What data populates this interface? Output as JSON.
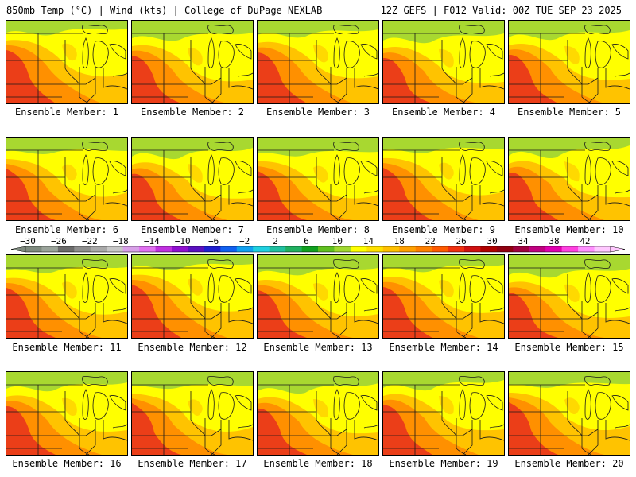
{
  "header": {
    "left": "850mb Temp (°C) | Wind (kts) | College of DuPage NEXLAB",
    "right": "12Z GEFS | F012 Valid: 00Z TUE SEP 23 2025"
  },
  "members": [
    "Ensemble Member: 1",
    "Ensemble Member: 2",
    "Ensemble Member: 3",
    "Ensemble Member: 4",
    "Ensemble Member: 5",
    "Ensemble Member: 6",
    "Ensemble Member: 7",
    "Ensemble Member: 8",
    "Ensemble Member: 9",
    "Ensemble Member: 10",
    "Ensemble Member: 11",
    "Ensemble Member: 12",
    "Ensemble Member: 13",
    "Ensemble Member: 14",
    "Ensemble Member: 15",
    "Ensemble Member: 16",
    "Ensemble Member: 17",
    "Ensemble Member: 18",
    "Ensemble Member: 19",
    "Ensemble Member: 20"
  ],
  "colorbar": {
    "labels": [
      "−30",
      "−26",
      "−22",
      "−18",
      "−14",
      "−10",
      "−6",
      "−2",
      "2",
      "6",
      "10",
      "14",
      "18",
      "22",
      "26",
      "30",
      "34",
      "38",
      "42"
    ],
    "colors": [
      "#7f8a7f",
      "#9aa39a",
      "#6b6b6b",
      "#8e8e8e",
      "#a9a9a9",
      "#c8c8c8",
      "#d8a0e8",
      "#e070f0",
      "#c030e0",
      "#9010d0",
      "#5a10c0",
      "#2020d0",
      "#1060f0",
      "#10a0f0",
      "#20d0e0",
      "#20c0a0",
      "#20b060",
      "#10a020",
      "#60c020",
      "#a0d830",
      "#ffff00",
      "#ffe000",
      "#ffc000",
      "#ffa000",
      "#ff8000",
      "#ff5a00",
      "#f03010",
      "#d01010",
      "#b00000",
      "#900010",
      "#a00040",
      "#c00080",
      "#e000b0",
      "#ff40e0",
      "#ff90ff",
      "#ffc8ff"
    ]
  },
  "colors": {
    "warm_red": "#e8301c",
    "orange": "#ff9000",
    "amber": "#ffc000",
    "yellow": "#ffff00",
    "green": "#a8d830",
    "map_lines": "#1a1a1a"
  }
}
